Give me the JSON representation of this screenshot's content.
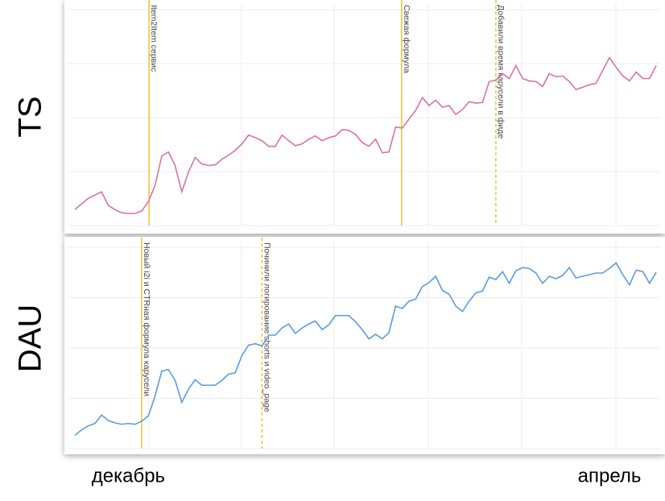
{
  "chart_data": [
    {
      "type": "line",
      "ylabel": "TS",
      "ylim": [
        0,
        100
      ],
      "grid": true,
      "categories": [
        null,
        null,
        null,
        null,
        null,
        null,
        null,
        null,
        null,
        null,
        null,
        null,
        null,
        null,
        null,
        null,
        null,
        null,
        null,
        null,
        null,
        null,
        null,
        null,
        null,
        null,
        null,
        null,
        null,
        null,
        null,
        null,
        null,
        null,
        null,
        null,
        null,
        null,
        null,
        null,
        null,
        null,
        null,
        null,
        null,
        null,
        null,
        null,
        null,
        null,
        null,
        null,
        null,
        null,
        null,
        null,
        null,
        null,
        null,
        null,
        null,
        null,
        null,
        null,
        null,
        null,
        null,
        null,
        null,
        null,
        null,
        null,
        null,
        null,
        null,
        null,
        null,
        null,
        null,
        null,
        null,
        null,
        null,
        null,
        null,
        null,
        null,
        null
      ],
      "series": [
        {
          "name": "TS",
          "color": "#d9739f",
          "values": [
            7.4,
            10,
            12.6,
            14.1,
            15.6,
            9.3,
            7.4,
            5.9,
            5.6,
            5.6,
            6.7,
            11.1,
            18.5,
            32.2,
            34.1,
            27.8,
            15.6,
            24.8,
            31.5,
            28.5,
            27.8,
            28.1,
            30.7,
            32.6,
            34.8,
            37.8,
            41.9,
            40.7,
            39.3,
            36.7,
            36.7,
            41.9,
            39.3,
            37,
            37.8,
            40,
            41.5,
            39.3,
            40.7,
            41.5,
            44.4,
            44.1,
            42.2,
            38.5,
            36.7,
            40,
            33.7,
            34.1,
            45.6,
            45.2,
            49.3,
            53.3,
            59.3,
            55.6,
            58.1,
            54.8,
            55.6,
            51.5,
            53.7,
            57.4,
            56.7,
            57,
            66.7,
            67.4,
            70.4,
            68.1,
            74.1,
            68.1,
            67,
            66.7,
            64.4,
            70.4,
            68.9,
            69.3,
            66.7,
            63,
            64.1,
            65.2,
            65.9,
            71.9,
            77.8,
            73.3,
            69.3,
            67,
            71.1,
            68.1,
            68.1,
            74.1
          ]
        }
      ],
      "annotations": [
        {
          "x": 11.1,
          "label": "Item2Item сервис",
          "style": "solid",
          "color": "#f2c12e"
        },
        {
          "x": 48.9,
          "label": "Свежая формула",
          "style": "solid",
          "color": "#f2c12e"
        },
        {
          "x": 63,
          "label": "Добавили время карусели в фиде",
          "style": "dashed",
          "color": "#f2c12e"
        }
      ]
    },
    {
      "type": "line",
      "ylabel": "DAU",
      "ylim": [
        0,
        100
      ],
      "grid": true,
      "categories": [
        null,
        null,
        null,
        null,
        null,
        null,
        null,
        null,
        "декабрь",
        null,
        null,
        null,
        null,
        null,
        null,
        null,
        null,
        null,
        null,
        null,
        null,
        null,
        null,
        null,
        null,
        null,
        null,
        null,
        null,
        null,
        null,
        null,
        null,
        null,
        null,
        null,
        null,
        null,
        null,
        null,
        null,
        null,
        null,
        null,
        null,
        null,
        null,
        null,
        null,
        null,
        null,
        null,
        null,
        null,
        null,
        null,
        null,
        null,
        null,
        null,
        null,
        null,
        null,
        null,
        null,
        null,
        null,
        null,
        null,
        null,
        null,
        null,
        null,
        null,
        null,
        null,
        null,
        null,
        null,
        null,
        "апрель",
        null,
        null,
        null,
        null,
        null,
        null,
        null
      ],
      "series": [
        {
          "name": "DAU",
          "color": "#5b9be0",
          "values": [
            6.6,
            9.3,
            11.3,
            12.5,
            16.7,
            14,
            12.8,
            12.1,
            12.5,
            12.1,
            13.6,
            16.3,
            26.1,
            38.5,
            39.3,
            33.9,
            23,
            29.6,
            34.2,
            31.5,
            31.5,
            31.5,
            33.9,
            37,
            37.7,
            46.3,
            51.4,
            52.1,
            51,
            56.4,
            56.4,
            59.9,
            61.9,
            57.2,
            59.9,
            61.9,
            63.4,
            59.1,
            61.5,
            66.1,
            66.1,
            66.1,
            63,
            59.1,
            54.5,
            56.8,
            54.5,
            57.6,
            70.8,
            69.6,
            73.2,
            74.3,
            80.5,
            82.5,
            85.6,
            78.6,
            76.7,
            70.8,
            68.1,
            73.2,
            77.4,
            78.2,
            85.2,
            84,
            87.9,
            82.1,
            88.3,
            89.9,
            89.5,
            87.2,
            82.1,
            85.6,
            84.4,
            86,
            89.9,
            84.8,
            85.6,
            86.4,
            87.2,
            87.2,
            89.5,
            92.2,
            86.4,
            81.3,
            88.7,
            87.9,
            82.1,
            87.5
          ]
        }
      ],
      "annotations": [
        {
          "x": 10,
          "label": "Новый i2i и CTRная формула карусели",
          "style": "solid",
          "color": "#f2c12e"
        },
        {
          "x": 28,
          "label": "Починили логирование shorts и video_page",
          "style": "dashed",
          "color": "#f2c12e"
        }
      ]
    }
  ]
}
